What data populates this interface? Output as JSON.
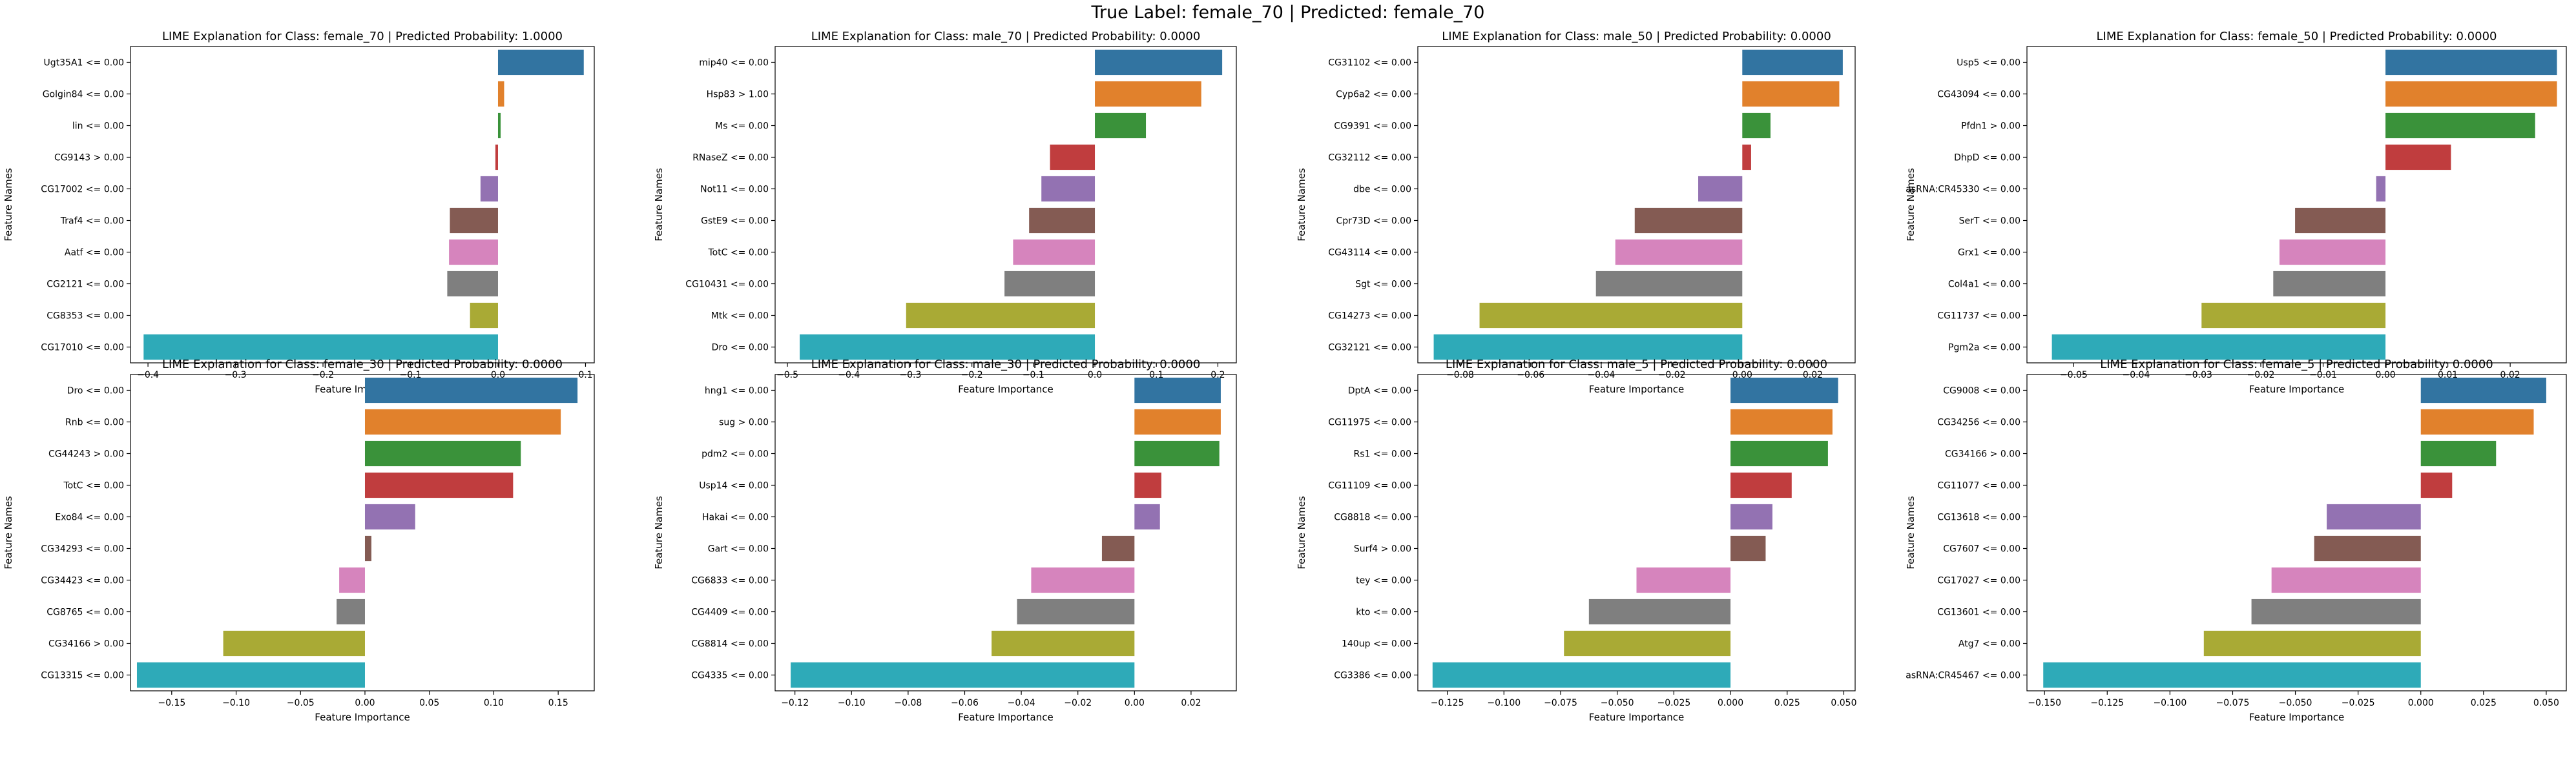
{
  "suptitle": "True Label: female_70 | Predicted: female_70",
  "chart_data": [
    {
      "type": "bar",
      "orientation": "horizontal",
      "title": "LIME Explanation for Class: female_70 | Predicted Probability: 1.0000",
      "xlabel": "Feature Importance",
      "ylabel": "Feature Names",
      "xlim": [
        -0.42,
        0.11
      ],
      "xticks": [
        -0.4,
        -0.3,
        -0.2,
        -0.1,
        0.0,
        0.1
      ],
      "xtick_labels": [
        "−0.4",
        "−0.3",
        "−0.2",
        "−0.1",
        "0.0",
        "0.1"
      ],
      "categories": [
        "Ugt35A1 <= 0.00",
        "Golgin84 <= 0.00",
        "lin <= 0.00",
        "CG9143 > 0.00",
        "CG17002 <= 0.00",
        "Traf4 <= 0.00",
        "Aatf <= 0.00",
        "CG2121 <= 0.00",
        "CG8353 <= 0.00",
        "CG17010 <= 0.00"
      ],
      "values": [
        0.098,
        0.007,
        0.003,
        -0.003,
        -0.02,
        -0.055,
        -0.056,
        -0.058,
        -0.032,
        -0.405
      ]
    },
    {
      "type": "bar",
      "orientation": "horizontal",
      "title": "LIME Explanation for Class: male_70 | Predicted Probability: 0.0000",
      "xlabel": "Feature Importance",
      "ylabel": "Feature Names",
      "xlim": [
        -0.52,
        0.23
      ],
      "xticks": [
        -0.5,
        -0.4,
        -0.3,
        -0.2,
        -0.1,
        0.0,
        0.1,
        0.2
      ],
      "xtick_labels": [
        "−0.5",
        "−0.4",
        "−0.3",
        "−0.2",
        "−0.1",
        "0.0",
        "0.1",
        "0.2"
      ],
      "categories": [
        "mip40 <= 0.00",
        "Hsp83 > 1.00",
        "Ms <= 0.00",
        "RNaseZ <= 0.00",
        "Not11 <= 0.00",
        "GstE9 <= 0.00",
        "TotC <= 0.00",
        "CG10431 <= 0.00",
        "Mtk <= 0.00",
        "Dro <= 0.00"
      ],
      "values": [
        0.207,
        0.173,
        0.083,
        -0.073,
        -0.087,
        -0.107,
        -0.133,
        -0.147,
        -0.307,
        -0.48
      ]
    },
    {
      "type": "bar",
      "orientation": "horizontal",
      "title": "LIME Explanation for Class: male_50 | Predicted Probability: 0.0000",
      "xlabel": "Feature Importance",
      "ylabel": "Feature Names",
      "xlim": [
        -0.092,
        0.032
      ],
      "xticks": [
        -0.08,
        -0.06,
        -0.04,
        -0.02,
        0.0,
        0.02
      ],
      "xtick_labels": [
        "−0.08",
        "−0.06",
        "−0.04",
        "−0.02",
        "0.00",
        "0.02"
      ],
      "categories": [
        "CG31102 <= 0.00",
        "Cyp6a2 <= 0.00",
        "CG9391 <= 0.00",
        "CG32112 <= 0.00",
        "dbe <= 0.00",
        "Cpr73D <= 0.00",
        "CG43114 <= 0.00",
        "Sgt <= 0.00",
        "CG14273 <= 0.00",
        "CG32121 <= 0.00"
      ],
      "values": [
        0.0285,
        0.0275,
        0.008,
        0.0025,
        -0.0125,
        -0.0305,
        -0.036,
        -0.0415,
        -0.0745,
        -0.0875
      ]
    },
    {
      "type": "bar",
      "orientation": "horizontal",
      "title": "LIME Explanation for Class: female_50 | Predicted Probability: 0.0000",
      "xlabel": "Feature Importance",
      "ylabel": "Feature Names",
      "xlim": [
        -0.0575,
        0.029
      ],
      "xticks": [
        -0.05,
        -0.04,
        -0.03,
        -0.02,
        -0.01,
        0.0,
        0.01,
        0.02
      ],
      "xtick_labels": [
        "−0.05",
        "−0.04",
        "−0.03",
        "−0.02",
        "−0.01",
        "0.00",
        "0.01",
        "0.02"
      ],
      "categories": [
        "Usp5 <= 0.00",
        "CG43094 <= 0.00",
        "Pfdn1 > 0.00",
        "DhpD <= 0.00",
        "asRNA:CR45330 <= 0.00",
        "SerT <= 0.00",
        "Grx1 <= 0.00",
        "Col4a1 <= 0.00",
        "CG11737 <= 0.00",
        "Pgm2a <= 0.00"
      ],
      "values": [
        0.0275,
        0.0275,
        0.024,
        0.0105,
        -0.0015,
        -0.0145,
        -0.017,
        -0.018,
        -0.0295,
        -0.0535
      ]
    },
    {
      "type": "bar",
      "orientation": "horizontal",
      "title": "LIME Explanation for Class: female_30 | Predicted Probability: 0.0000",
      "xlabel": "Feature Importance",
      "ylabel": "Feature Names",
      "xlim": [
        -0.182,
        0.178
      ],
      "xticks": [
        -0.15,
        -0.1,
        -0.05,
        0.0,
        0.05,
        0.1,
        0.15
      ],
      "xtick_labels": [
        "−0.15",
        "−0.10",
        "−0.05",
        "0.00",
        "0.05",
        "0.10",
        "0.15"
      ],
      "categories": [
        "Dro <= 0.00",
        "Rnb <= 0.00",
        "CG44243 > 0.00",
        "TotC <= 0.00",
        "Exo84 <= 0.00",
        "CG34293 <= 0.00",
        "CG34423 <= 0.00",
        "CG8765 <= 0.00",
        "CG34166 > 0.00",
        "CG13315 <= 0.00"
      ],
      "values": [
        0.165,
        0.152,
        0.121,
        0.115,
        0.039,
        0.005,
        -0.02,
        -0.022,
        -0.11,
        -0.177
      ]
    },
    {
      "type": "bar",
      "orientation": "horizontal",
      "title": "LIME Explanation for Class: male_30 | Predicted Probability: 0.0000",
      "xlabel": "Feature Importance",
      "ylabel": "Feature Names",
      "xlim": [
        -0.127,
        0.036
      ],
      "xticks": [
        -0.12,
        -0.1,
        -0.08,
        -0.06,
        -0.04,
        -0.02,
        0.0,
        0.02
      ],
      "xtick_labels": [
        "−0.12",
        "−0.10",
        "−0.08",
        "−0.06",
        "−0.04",
        "−0.02",
        "0.00",
        "0.02"
      ],
      "categories": [
        "hng1 <= 0.00",
        "sug > 0.00",
        "pdm2 <= 0.00",
        "Usp14 <= 0.00",
        "Hakai <= 0.00",
        "Gart <= 0.00",
        "CG6833 <= 0.00",
        "CG4409 <= 0.00",
        "CG8814 <= 0.00",
        "CG4335 <= 0.00"
      ],
      "values": [
        0.0305,
        0.0305,
        0.03,
        0.0095,
        0.009,
        -0.0115,
        -0.0365,
        -0.0415,
        -0.0505,
        -0.1215
      ]
    },
    {
      "type": "bar",
      "orientation": "horizontal",
      "title": "LIME Explanation for Class: male_5 | Predicted Probability: 0.0000",
      "xlabel": "Feature Importance",
      "ylabel": "Feature Names",
      "xlim": [
        -0.138,
        0.055
      ],
      "xticks": [
        -0.125,
        -0.1,
        -0.075,
        -0.05,
        -0.025,
        0.0,
        0.025,
        0.05
      ],
      "xtick_labels": [
        "−0.125",
        "−0.100",
        "−0.075",
        "−0.050",
        "−0.025",
        "0.000",
        "0.025",
        "0.050"
      ],
      "categories": [
        "DptA <= 0.00",
        "CG11975 <= 0.00",
        "Rs1 <= 0.00",
        "CG11109 <= 0.00",
        "CG8818 <= 0.00",
        "Surf4 > 0.00",
        "tey <= 0.00",
        "kto <= 0.00",
        "140up <= 0.00",
        "CG3386 <= 0.00"
      ],
      "values": [
        0.0475,
        0.045,
        0.043,
        0.027,
        0.0185,
        0.0155,
        -0.0415,
        -0.0625,
        -0.0735,
        -0.1315
      ]
    },
    {
      "type": "bar",
      "orientation": "horizontal",
      "title": "LIME Explanation for Class: female_5 | Predicted Probability: 0.0000",
      "xlabel": "Feature Importance",
      "ylabel": "Feature Names",
      "xlim": [
        -0.157,
        0.058
      ],
      "xticks": [
        -0.15,
        -0.125,
        -0.1,
        -0.075,
        -0.05,
        -0.025,
        0.0,
        0.025,
        0.05
      ],
      "xtick_labels": [
        "−0.150",
        "−0.125",
        "−0.100",
        "−0.075",
        "−0.050",
        "−0.025",
        "0.000",
        "0.025",
        "0.050"
      ],
      "categories": [
        "CG9008 <= 0.00",
        "CG34256 <= 0.00",
        "CG34166 > 0.00",
        "CG11077 <= 0.00",
        "CG13618 <= 0.00",
        "CG7607 <= 0.00",
        "CG17027 <= 0.00",
        "CG13601 <= 0.00",
        "Atg7 <= 0.00",
        "asRNA:CR45467 <= 0.00"
      ],
      "values": [
        0.05,
        0.045,
        0.03,
        0.0125,
        -0.0375,
        -0.0425,
        -0.0595,
        -0.0675,
        -0.0865,
        -0.1505
      ]
    }
  ],
  "palette": [
    "#3274a1",
    "#e1812c",
    "#3a923a",
    "#c03d3e",
    "#9372b2",
    "#845b53",
    "#d684bd",
    "#7f7f7f",
    "#a9aa35",
    "#2eaab8"
  ]
}
